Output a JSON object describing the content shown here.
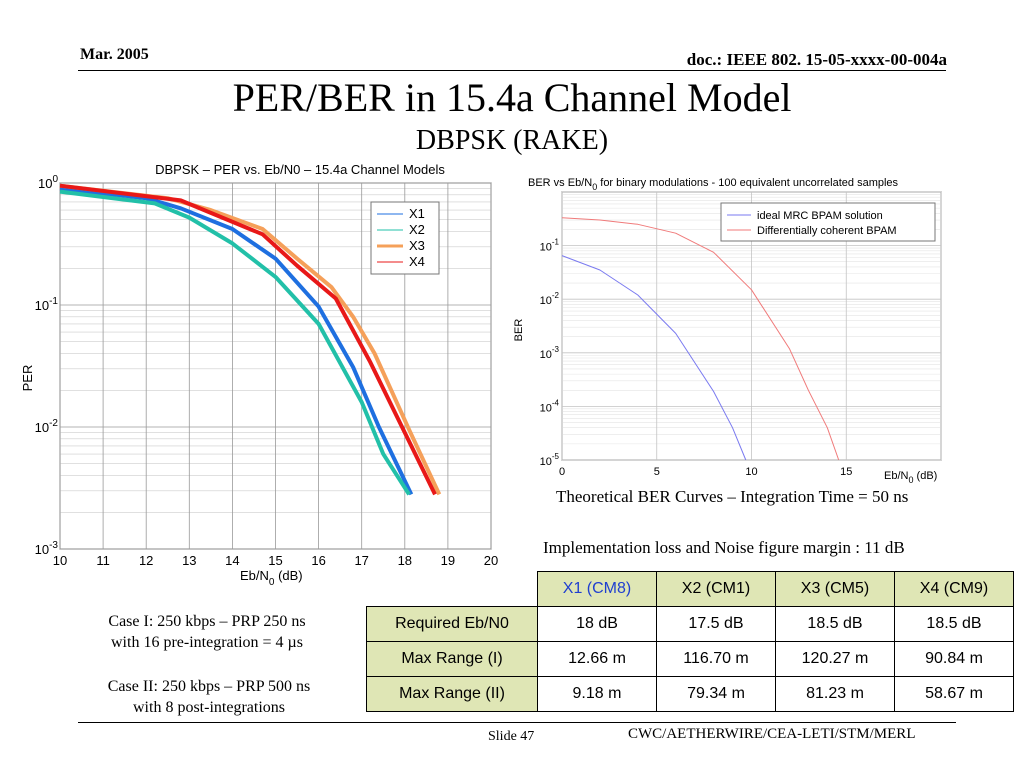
{
  "header": {
    "date": "Mar. 2005",
    "doc": "doc.: IEEE 802. 15-05-xxxx-00-004a"
  },
  "title": "PER/BER in 15.4a Channel Model",
  "subtitle": "DBPSK (RAKE)",
  "left_chart": {
    "title": "DBPSK – PER vs. Eb/N0 – 15.4a Channel Models",
    "xlabel_pre": "Eb/N",
    "xlabel_sub": "0",
    "xlabel_post": " (dB)",
    "ylabel": "PER"
  },
  "right_chart": {
    "title_pre": "BER vs Eb/N",
    "title_sub": "0",
    "title_post": " for binary modulations - 100 equivalent uncorrelated  samples",
    "ylabel": "BER",
    "xlabel_pre": "Eb/N",
    "xlabel_sub": "0",
    "xlabel_post": " (dB)",
    "caption": "Theoretical BER Curves – Integration Time = 50 ns"
  },
  "impl_note": "Implementation loss and Noise figure margin : 11 dB",
  "cases": {
    "case1_line1": "Case I: 250 kbps – PRP 250 ns",
    "case1_line2": "with 16 pre-integration  = 4 µs",
    "case2_line1": "Case II: 250 kbps – PRP 500 ns",
    "case2_line2": "with 8 post-integrations"
  },
  "table": {
    "columns": [
      "X1 (CM8)",
      "X2 (CM1)",
      "X3 (CM5)",
      "X4 (CM9)"
    ],
    "rows": [
      {
        "label": "Required Eb/N0",
        "values": [
          "18 dB",
          "17.5 dB",
          "18.5 dB",
          "18.5 dB"
        ]
      },
      {
        "label": "Max Range (I)",
        "values": [
          "12.66 m",
          "116.70 m",
          "120.27 m",
          "90.84 m"
        ]
      },
      {
        "label": "Max Range (II)",
        "values": [
          "9.18 m",
          "79.34 m",
          "81.23 m",
          "58.67 m"
        ]
      }
    ]
  },
  "footer": {
    "slide": "Slide 47",
    "org": "CWC/AETHERWIRE/CEA-LETI/STM/MERL"
  },
  "chart_data": [
    {
      "type": "line",
      "title": "DBPSK – PER vs. Eb/N0 – 15.4a Channel Models",
      "xlabel": "Eb/N0 (dB)",
      "ylabel": "PER",
      "xlim": [
        10,
        20
      ],
      "ylim": [
        0.001,
        1
      ],
      "yscale": "log",
      "grid": true,
      "legend": "top-right",
      "x_ticks": [
        "10",
        "11",
        "12",
        "13",
        "14",
        "15",
        "16",
        "17",
        "18",
        "19",
        "20"
      ],
      "y_ticks": [
        {
          "base": "10",
          "exp": "0"
        },
        {
          "base": "10",
          "exp": "-1"
        },
        {
          "base": "10",
          "exp": "-2"
        },
        {
          "base": "10",
          "exp": "-3"
        }
      ],
      "series": [
        {
          "name": "X1",
          "color": "#1e6fe0",
          "values": [
            [
              10,
              0.9
            ],
            [
              12,
              0.75
            ],
            [
              12.8,
              0.62
            ],
            [
              14,
              0.42
            ],
            [
              15,
              0.24
            ],
            [
              16,
              0.097
            ],
            [
              16.8,
              0.031
            ],
            [
              17.4,
              0.01
            ],
            [
              18.15,
              0.0028
            ]
          ]
        },
        {
          "name": "X2",
          "color": "#22c0a8",
          "values": [
            [
              10,
              0.85
            ],
            [
              12.2,
              0.68
            ],
            [
              13,
              0.52
            ],
            [
              14,
              0.32
            ],
            [
              15,
              0.17
            ],
            [
              16,
              0.07
            ],
            [
              17,
              0.016
            ],
            [
              17.5,
              0.006
            ],
            [
              18.1,
              0.0028
            ]
          ]
        },
        {
          "name": "X3",
          "color": "#f5a05a",
          "values": [
            [
              10,
              0.95
            ],
            [
              12.5,
              0.75
            ],
            [
              13.5,
              0.6
            ],
            [
              14.7,
              0.42
            ],
            [
              15.5,
              0.24
            ],
            [
              16.3,
              0.14
            ],
            [
              16.8,
              0.08
            ],
            [
              17.3,
              0.04
            ],
            [
              18.1,
              0.0095
            ],
            [
              18.8,
              0.0028
            ]
          ]
        },
        {
          "name": "X4",
          "color": "#e81818",
          "values": [
            [
              10,
              0.95
            ],
            [
              12.8,
              0.72
            ],
            [
              14.7,
              0.38
            ],
            [
              15.5,
              0.21
            ],
            [
              16.4,
              0.113
            ],
            [
              17.2,
              0.034
            ],
            [
              18,
              0.009
            ],
            [
              18.7,
              0.0028
            ]
          ]
        }
      ]
    },
    {
      "type": "line",
      "title": "BER vs Eb/N0 for binary modulations - 100 equivalent uncorrelated  samples",
      "xlabel": "Eb/N0 (dB)",
      "ylabel": "BER",
      "xlim": [
        0,
        20
      ],
      "ylim": [
        1e-05,
        1
      ],
      "yscale": "log",
      "grid": true,
      "legend": "top-right",
      "x_ticks": [
        "0",
        "5",
        "10",
        "15"
      ],
      "y_ticks": [
        {
          "base": "10",
          "exp": "-1"
        },
        {
          "base": "10",
          "exp": "-2"
        },
        {
          "base": "10",
          "exp": "-3"
        },
        {
          "base": "10",
          "exp": "-4"
        },
        {
          "base": "10",
          "exp": "-5"
        }
      ],
      "series": [
        {
          "name": "ideal MRC BPAM solution",
          "color": "#7a7af0",
          "values": [
            [
              0,
              0.065
            ],
            [
              2,
              0.035
            ],
            [
              4,
              0.012
            ],
            [
              6,
              0.0023
            ],
            [
              8,
              0.00019
            ],
            [
              9,
              4e-05
            ],
            [
              9.7,
              1e-05
            ]
          ]
        },
        {
          "name": "Differentially coherent BPAM",
          "color": "#f07a7a",
          "values": [
            [
              0,
              0.33
            ],
            [
              2,
              0.3
            ],
            [
              4,
              0.25
            ],
            [
              6,
              0.17
            ],
            [
              8,
              0.075
            ],
            [
              10,
              0.015
            ],
            [
              12,
              0.0012
            ],
            [
              13,
              0.0002
            ],
            [
              14,
              4e-05
            ],
            [
              14.6,
              1e-05
            ]
          ]
        }
      ]
    }
  ]
}
